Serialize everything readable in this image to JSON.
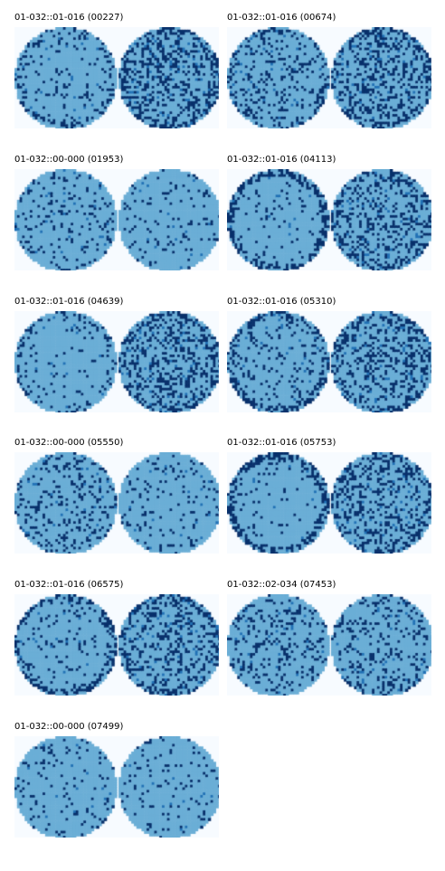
{
  "colors": {
    "background": "#f7fbff",
    "fill": "#6baed6",
    "defect": "#08306b",
    "defect_secondary": "#2171b5"
  },
  "panels": [
    {
      "title": "01-032::01-016 (00227)",
      "density": [
        0.1,
        0.3
      ],
      "ring": [
        0.35,
        0.55
      ]
    },
    {
      "title": "01-032::01-016 (00674)",
      "density": [
        0.18,
        0.3
      ],
      "ring": [
        0.4,
        0.55
      ]
    },
    {
      "title": "01-032::00-000 (01953)",
      "density": [
        0.12,
        0.08
      ],
      "ring": [
        0.1,
        0.05
      ]
    },
    {
      "title": "01-032::01-016 (04113)",
      "density": [
        0.06,
        0.25
      ],
      "ring": [
        0.65,
        0.45
      ]
    },
    {
      "title": "01-032::01-016 (04639)",
      "density": [
        0.07,
        0.28
      ],
      "ring": [
        0.3,
        0.5
      ]
    },
    {
      "title": "01-032::01-016 (05310)",
      "density": [
        0.15,
        0.28
      ],
      "ring": [
        0.55,
        0.5
      ]
    },
    {
      "title": "01-032::00-000 (05550)",
      "density": [
        0.16,
        0.09
      ],
      "ring": [
        0.25,
        0.05
      ]
    },
    {
      "title": "01-032::01-016 (05753)",
      "density": [
        0.05,
        0.25
      ],
      "ring": [
        0.7,
        0.45
      ]
    },
    {
      "title": "01-032::01-016 (06575)",
      "density": [
        0.09,
        0.28
      ],
      "ring": [
        0.55,
        0.5
      ]
    },
    {
      "title": "01-032::02-034 (07453)",
      "density": [
        0.16,
        0.16
      ],
      "ring": [
        0.2,
        0.25
      ]
    },
    {
      "title": "01-032::00-000 (07499)",
      "density": [
        0.08,
        0.09
      ],
      "ring": [
        0.05,
        0.05
      ]
    }
  ]
}
